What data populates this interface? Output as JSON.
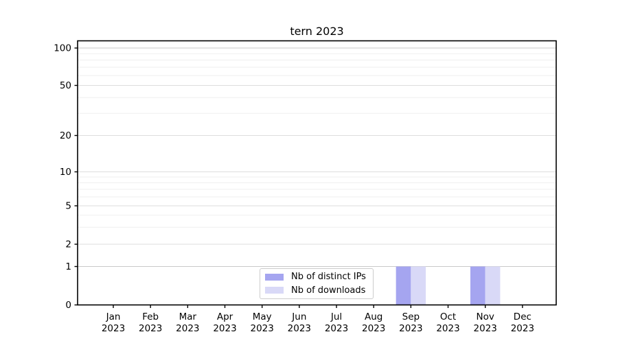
{
  "chart_data": {
    "type": "bar",
    "title": "tern 2023",
    "categories": [
      "Jan 2023",
      "Feb 2023",
      "Mar 2023",
      "Apr 2023",
      "May 2023",
      "Jun 2023",
      "Jul 2023",
      "Aug 2023",
      "Sep 2023",
      "Oct 2023",
      "Nov 2023",
      "Dec 2023"
    ],
    "series": [
      {
        "name": "Nb of distinct IPs",
        "color": "#a5a5f0",
        "values": [
          0,
          0,
          0,
          0,
          0,
          0,
          0,
          0,
          1,
          0,
          1,
          0
        ]
      },
      {
        "name": "Nb of downloads",
        "color": "#d9d9f7",
        "values": [
          0,
          0,
          0,
          0,
          0,
          0,
          0,
          0,
          1,
          0,
          1,
          0
        ]
      }
    ],
    "xlabel": "",
    "ylabel": "",
    "yaxis": {
      "scale": "log-like above 1, linear 0-1",
      "ticks": [
        0,
        1,
        2,
        5,
        10,
        20,
        50,
        100
      ],
      "range": [
        0,
        115
      ]
    },
    "grid": {
      "major": [
        1,
        100
      ],
      "mid": [
        2,
        5,
        10,
        20,
        50
      ],
      "minor": [
        3,
        4,
        6,
        7,
        8,
        9,
        30,
        40,
        60,
        70,
        80,
        90
      ]
    },
    "legend": {
      "position": "lower center"
    }
  }
}
